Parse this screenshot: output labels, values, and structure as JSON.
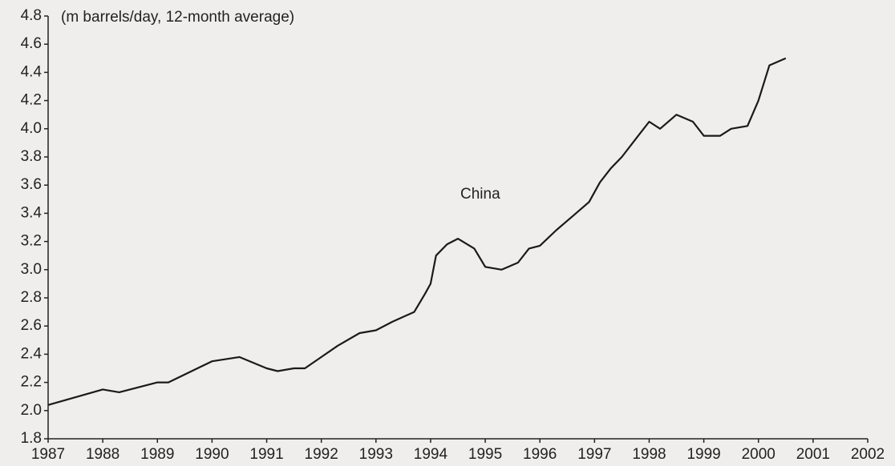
{
  "chart_data": {
    "type": "line",
    "subtitle": "(m barrels/day, 12-month average)",
    "x": [
      1987.0,
      1988.0,
      1988.3,
      1989.0,
      1989.2,
      1990.0,
      1990.5,
      1991.0,
      1991.2,
      1991.5,
      1991.7,
      1992.0,
      1992.3,
      1992.7,
      1993.0,
      1993.3,
      1993.7,
      1993.9,
      1994.0,
      1994.1,
      1994.3,
      1994.5,
      1994.8,
      1995.0,
      1995.3,
      1995.6,
      1995.8,
      1996.0,
      1996.3,
      1996.6,
      1996.9,
      1997.1,
      1997.3,
      1997.5,
      1997.8,
      1998.0,
      1998.2,
      1998.5,
      1998.8,
      1999.0,
      1999.3,
      1999.5,
      1999.8,
      2000.0,
      2000.2,
      2000.5
    ],
    "series": [
      {
        "name": "China",
        "color": "#1a1a1a",
        "values": [
          2.04,
          2.15,
          2.13,
          2.2,
          2.2,
          2.35,
          2.38,
          2.3,
          2.28,
          2.3,
          2.3,
          2.38,
          2.46,
          2.55,
          2.57,
          2.63,
          2.7,
          2.83,
          2.9,
          3.1,
          3.18,
          3.22,
          3.15,
          3.02,
          3.0,
          3.05,
          3.15,
          3.17,
          3.28,
          3.38,
          3.48,
          3.62,
          3.72,
          3.8,
          3.95,
          4.05,
          4.0,
          4.1,
          4.05,
          3.95,
          3.95,
          4.0,
          4.02,
          4.2,
          4.45,
          4.5
        ]
      }
    ],
    "xlim": [
      1987,
      2002
    ],
    "xticks": [
      1987,
      1988,
      1989,
      1990,
      1991,
      1992,
      1993,
      1994,
      1995,
      1996,
      1997,
      1998,
      1999,
      2000,
      2001,
      2002
    ],
    "ylim": [
      1.8,
      4.8
    ],
    "yticks": [
      1.8,
      {
        "value": 2,
        "label": "2.0"
      },
      2.2,
      2.4,
      2.6,
      2.8,
      {
        "value": 3,
        "label": "3.0"
      },
      3.2,
      3.4,
      3.6,
      3.8,
      {
        "value": 4,
        "label": "4.0"
      },
      4.2,
      4.4,
      4.6,
      4.8
    ],
    "grid": false
  }
}
